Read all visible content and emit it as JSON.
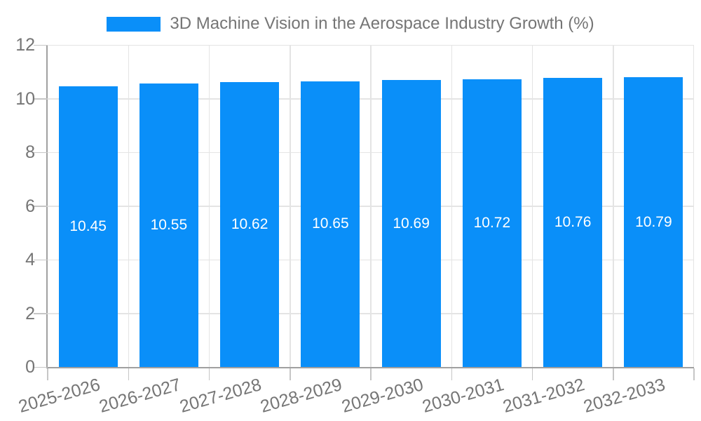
{
  "chart_data": {
    "type": "bar",
    "title": "3D Machine Vision in the Aerospace Industry Growth (%)",
    "categories": [
      "2025-2026",
      "2026-2027",
      "2027-2028",
      "2028-2029",
      "2029-2030",
      "2030-2031",
      "2031-2032",
      "2032-2033"
    ],
    "series": [
      {
        "name": "3D Machine Vision in the Aerospace Industry Growth (%)",
        "values": [
          10.45,
          10.55,
          10.62,
          10.65,
          10.69,
          10.72,
          10.76,
          10.79
        ]
      }
    ],
    "value_label_decimals": 2,
    "xlabel": "",
    "ylabel": "",
    "ylim": [
      0,
      12
    ],
    "yticks": [
      0,
      2,
      4,
      6,
      8,
      10,
      12
    ],
    "grid": true,
    "legend_position": "top",
    "colors": {
      "bar": "#0a8ff9",
      "value_label_text": "#ffffff",
      "grid_line": "#e4e4e4",
      "axis_line": "#a0a0a0",
      "tick_mark": "#c6c6c6",
      "tick_label_text": "#757575",
      "legend_text": "#757575",
      "background": "#ffffff"
    }
  }
}
